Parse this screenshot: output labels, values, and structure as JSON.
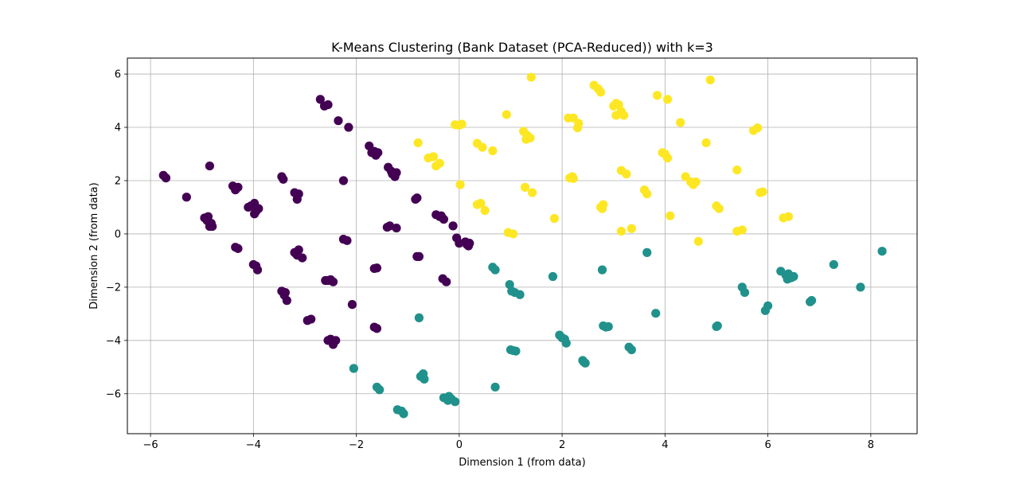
{
  "chart_data": {
    "type": "scatter",
    "title": "K-Means Clustering (Bank Dataset (PCA-Reduced)) with k=3",
    "xlabel": "Dimension 1 (from data)",
    "ylabel": "Dimension 2 (from data)",
    "xlim": [
      -6.45,
      8.9
    ],
    "ylim": [
      -7.5,
      6.6
    ],
    "xticks": [
      -6,
      -4,
      -2,
      0,
      2,
      4,
      6,
      8
    ],
    "yticks": [
      -6,
      -4,
      -2,
      0,
      2,
      4,
      6
    ],
    "grid": true,
    "colors": {
      "cluster_0": "#440154",
      "cluster_1": "#21918c",
      "cluster_2": "#fde725"
    },
    "series": [
      {
        "cluster": 0,
        "color": "#440154",
        "points": [
          [
            -5.75,
            2.2
          ],
          [
            -5.7,
            2.1
          ],
          [
            -5.3,
            1.38
          ],
          [
            -4.85,
            2.55
          ],
          [
            -4.95,
            0.6
          ],
          [
            -4.88,
            0.65
          ],
          [
            -4.82,
            0.4
          ],
          [
            -4.85,
            0.28
          ],
          [
            -4.8,
            0.28
          ],
          [
            -4.9,
            0.5
          ],
          [
            -4.4,
            1.8
          ],
          [
            -4.35,
            1.65
          ],
          [
            -4.3,
            1.75
          ],
          [
            -4.35,
            -0.5
          ],
          [
            -4.3,
            -0.55
          ],
          [
            -4.05,
            1.05
          ],
          [
            -3.98,
            1.15
          ],
          [
            -3.95,
            0.85
          ],
          [
            -3.9,
            0.95
          ],
          [
            -3.98,
            0.75
          ],
          [
            -4.1,
            1.0
          ],
          [
            -4.0,
            -1.15
          ],
          [
            -3.92,
            -1.35
          ],
          [
            -3.95,
            -1.2
          ],
          [
            -3.45,
            2.15
          ],
          [
            -3.42,
            2.05
          ],
          [
            -3.2,
            1.55
          ],
          [
            -3.15,
            1.3
          ],
          [
            -3.12,
            1.5
          ],
          [
            -3.2,
            -0.7
          ],
          [
            -3.12,
            -0.6
          ],
          [
            -3.05,
            -0.9
          ],
          [
            -3.15,
            -0.8
          ],
          [
            -3.45,
            -2.15
          ],
          [
            -3.4,
            -2.3
          ],
          [
            -3.35,
            -2.5
          ],
          [
            -3.38,
            -2.2
          ],
          [
            -2.95,
            -3.25
          ],
          [
            -2.88,
            -3.2
          ],
          [
            -2.7,
            5.05
          ],
          [
            -2.62,
            4.8
          ],
          [
            -2.55,
            4.85
          ],
          [
            -2.35,
            4.25
          ],
          [
            -2.15,
            4.0
          ],
          [
            -2.25,
            2.0
          ],
          [
            -2.6,
            -1.75
          ],
          [
            -2.55,
            -1.75
          ],
          [
            -2.45,
            -1.8
          ],
          [
            -2.5,
            -1.72
          ],
          [
            -2.55,
            -4.0
          ],
          [
            -2.5,
            -3.95
          ],
          [
            -2.45,
            -4.15
          ],
          [
            -2.4,
            -4.0
          ],
          [
            -2.25,
            -0.2
          ],
          [
            -2.18,
            -0.25
          ],
          [
            -2.08,
            -2.65
          ],
          [
            -1.75,
            3.3
          ],
          [
            -1.7,
            3.05
          ],
          [
            -1.65,
            3.1
          ],
          [
            -1.62,
            2.95
          ],
          [
            -1.58,
            3.05
          ],
          [
            -1.65,
            -1.3
          ],
          [
            -1.6,
            -1.28
          ],
          [
            -1.65,
            -3.5
          ],
          [
            -1.6,
            -3.55
          ],
          [
            -1.38,
            2.5
          ],
          [
            -1.32,
            2.35
          ],
          [
            -1.3,
            2.25
          ],
          [
            -1.25,
            2.15
          ],
          [
            -1.22,
            2.3
          ],
          [
            -1.4,
            0.25
          ],
          [
            -1.35,
            0.3
          ],
          [
            -1.22,
            0.22
          ],
          [
            -0.85,
            1.3
          ],
          [
            -0.82,
            1.35
          ],
          [
            -0.82,
            -0.85
          ],
          [
            -0.78,
            -0.85
          ],
          [
            -0.45,
            0.72
          ],
          [
            -0.38,
            0.65
          ],
          [
            -0.3,
            0.55
          ],
          [
            -0.35,
            0.68
          ],
          [
            -0.32,
            -1.68
          ],
          [
            -0.25,
            -1.8
          ],
          [
            -0.12,
            0.3
          ],
          [
            -0.05,
            -0.15
          ],
          [
            0.0,
            -0.35
          ],
          [
            0.12,
            -0.3
          ],
          [
            0.18,
            -0.45
          ],
          [
            0.2,
            -0.35
          ],
          [
            0.15,
            -0.4
          ]
        ]
      },
      {
        "cluster": 1,
        "color": "#21918c",
        "points": [
          [
            -2.05,
            -5.05
          ],
          [
            -1.6,
            -5.75
          ],
          [
            -1.55,
            -5.85
          ],
          [
            -1.2,
            -6.6
          ],
          [
            -1.12,
            -6.65
          ],
          [
            -1.08,
            -6.75
          ],
          [
            -0.78,
            -3.15
          ],
          [
            -0.75,
            -5.35
          ],
          [
            -0.7,
            -5.25
          ],
          [
            -0.68,
            -5.45
          ],
          [
            -0.3,
            -6.15
          ],
          [
            -0.22,
            -6.25
          ],
          [
            -0.15,
            -6.2
          ],
          [
            -0.08,
            -6.3
          ],
          [
            -0.2,
            -6.1
          ],
          [
            0.65,
            -1.25
          ],
          [
            0.7,
            -1.35
          ],
          [
            0.7,
            -5.75
          ],
          [
            0.98,
            -1.9
          ],
          [
            1.02,
            -2.15
          ],
          [
            1.08,
            -2.2
          ],
          [
            1.18,
            -2.28
          ],
          [
            1.0,
            -4.35
          ],
          [
            1.1,
            -4.4
          ],
          [
            1.05,
            -4.38
          ],
          [
            1.82,
            -1.6
          ],
          [
            1.95,
            -3.8
          ],
          [
            2.0,
            -3.9
          ],
          [
            2.08,
            -4.1
          ],
          [
            2.05,
            -3.95
          ],
          [
            2.4,
            -4.75
          ],
          [
            2.45,
            -4.85
          ],
          [
            2.42,
            -4.8
          ],
          [
            2.78,
            -1.35
          ],
          [
            2.8,
            -3.45
          ],
          [
            2.85,
            -3.5
          ],
          [
            2.9,
            -3.48
          ],
          [
            3.3,
            -4.25
          ],
          [
            3.35,
            -4.35
          ],
          [
            3.65,
            -0.7
          ],
          [
            3.82,
            -2.98
          ],
          [
            5.02,
            -3.45
          ],
          [
            5.0,
            -3.48
          ],
          [
            5.5,
            -2.0
          ],
          [
            5.55,
            -2.2
          ],
          [
            5.95,
            -2.88
          ],
          [
            6.0,
            -2.7
          ],
          [
            6.25,
            -1.4
          ],
          [
            6.35,
            -1.55
          ],
          [
            6.4,
            -1.5
          ],
          [
            6.45,
            -1.65
          ],
          [
            6.5,
            -1.6
          ],
          [
            6.38,
            -1.7
          ],
          [
            6.82,
            -2.55
          ],
          [
            6.85,
            -2.5
          ],
          [
            7.28,
            -1.15
          ],
          [
            7.8,
            -2.0
          ],
          [
            8.22,
            -0.65
          ]
        ]
      },
      {
        "cluster": 2,
        "color": "#fde725",
        "points": [
          [
            -0.8,
            3.42
          ],
          [
            -0.6,
            2.85
          ],
          [
            -0.5,
            2.9
          ],
          [
            -0.45,
            2.55
          ],
          [
            -0.38,
            2.65
          ],
          [
            -0.08,
            4.1
          ],
          [
            0.05,
            4.12
          ],
          [
            0.0,
            4.08
          ],
          [
            0.02,
            1.85
          ],
          [
            0.35,
            1.1
          ],
          [
            0.42,
            1.15
          ],
          [
            0.5,
            0.88
          ],
          [
            0.35,
            3.4
          ],
          [
            0.45,
            3.25
          ],
          [
            0.65,
            3.12
          ],
          [
            0.92,
            4.48
          ],
          [
            0.95,
            0.05
          ],
          [
            1.05,
            0.0
          ],
          [
            1.4,
            5.88
          ],
          [
            1.25,
            3.85
          ],
          [
            1.32,
            3.7
          ],
          [
            1.3,
            3.55
          ],
          [
            1.38,
            3.6
          ],
          [
            1.28,
            1.75
          ],
          [
            1.42,
            1.55
          ],
          [
            1.85,
            0.58
          ],
          [
            2.12,
            4.35
          ],
          [
            2.22,
            4.35
          ],
          [
            2.3,
            3.98
          ],
          [
            2.32,
            4.15
          ],
          [
            2.15,
            2.1
          ],
          [
            2.2,
            2.15
          ],
          [
            2.22,
            2.08
          ],
          [
            2.62,
            5.58
          ],
          [
            2.7,
            5.45
          ],
          [
            2.75,
            5.32
          ],
          [
            2.75,
            1.0
          ],
          [
            2.8,
            1.1
          ],
          [
            2.78,
            0.95
          ],
          [
            3.0,
            4.8
          ],
          [
            3.05,
            4.9
          ],
          [
            3.1,
            4.85
          ],
          [
            3.15,
            4.6
          ],
          [
            3.2,
            4.45
          ],
          [
            3.05,
            4.45
          ],
          [
            3.15,
            2.38
          ],
          [
            3.25,
            2.25
          ],
          [
            3.15,
            0.1
          ],
          [
            3.35,
            0.2
          ],
          [
            3.6,
            1.65
          ],
          [
            3.65,
            1.5
          ],
          [
            3.85,
            5.2
          ],
          [
            4.05,
            5.05
          ],
          [
            3.95,
            3.05
          ],
          [
            4.05,
            2.85
          ],
          [
            4.0,
            3.0
          ],
          [
            4.1,
            0.68
          ],
          [
            4.3,
            4.18
          ],
          [
            4.4,
            2.15
          ],
          [
            4.5,
            1.95
          ],
          [
            4.55,
            1.85
          ],
          [
            4.6,
            1.95
          ],
          [
            4.65,
            -0.28
          ],
          [
            4.8,
            3.42
          ],
          [
            4.88,
            5.78
          ],
          [
            5.0,
            1.05
          ],
          [
            5.05,
            0.95
          ],
          [
            5.4,
            2.4
          ],
          [
            5.4,
            0.1
          ],
          [
            5.5,
            0.15
          ],
          [
            5.72,
            3.88
          ],
          [
            5.8,
            3.98
          ],
          [
            5.85,
            1.55
          ],
          [
            5.9,
            1.58
          ],
          [
            6.3,
            0.6
          ],
          [
            6.4,
            0.65
          ]
        ]
      }
    ]
  }
}
